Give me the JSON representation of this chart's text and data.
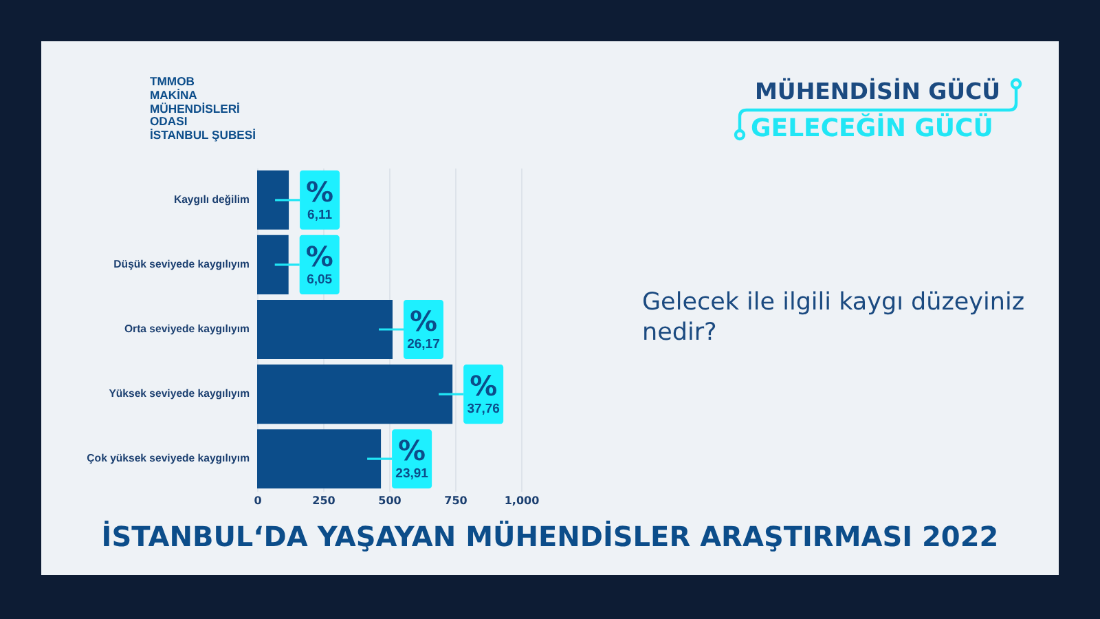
{
  "chart_data": {
    "type": "bar",
    "orientation": "horizontal",
    "title": "İSTANBUL‘DA YAŞAYAN MÜHENDİSLER ARAŞTIRMASI 2022",
    "subtitle": "Gelecek ile ilgili kaygı düzeyiniz nedir?",
    "annotations": [
      "TMMOB\nMAKİNA\nMÜHENDİSLERİ\nODASI\nİSTANBUL ŞUBESİ",
      "MÜHENDİSİN GÜCÜ",
      "GELECEĞİN GÜCÜ",
      {
        "text": "%",
        "x": 120,
        "y": "Kaygılı değilim"
      },
      {
        "text": "6,11",
        "x": 120,
        "y": "Kaygılı değilim"
      },
      {
        "text": "%",
        "x": 119,
        "y": "Düşük seviyede kaygılıyım"
      },
      {
        "text": "6,05",
        "x": 119,
        "y": "Düşük seviyede kaygılıyım"
      },
      {
        "text": "%",
        "x": 513,
        "y": "Orta seviyede kaygılıyım"
      },
      {
        "text": "26,17",
        "x": 513,
        "y": "Orta seviyede kaygılıyım"
      },
      {
        "text": "%",
        "x": 740,
        "y": "Yüksek seviyede kaygılıyım"
      },
      {
        "text": "37,76",
        "x": 740,
        "y": "Yüksek seviyede kaygılıyım"
      },
      {
        "text": "%",
        "x": 469,
        "y": "Çok yüksek seviyede kaygılıyım"
      },
      {
        "text": "23,91",
        "x": 469,
        "y": "Çok yüksek seviyede kaygılıyım"
      }
    ],
    "categories": [
      "Kaygılı değilim",
      "Düşük seviyede kaygılıyım",
      "Orta seviyede kaygılıyım",
      "Yüksek seviyede kaygılıyım",
      "Çok yüksek seviyede kaygılıyım"
    ],
    "values": [
      120,
      119,
      513,
      740,
      469
    ],
    "color": "#0c4d8a",
    "xlim": [
      0,
      1000
    ],
    "xticks": [
      0,
      250,
      500,
      750,
      {
        "value": 1000,
        "label": "1,000"
      }
    ],
    "grid": "x"
  }
}
